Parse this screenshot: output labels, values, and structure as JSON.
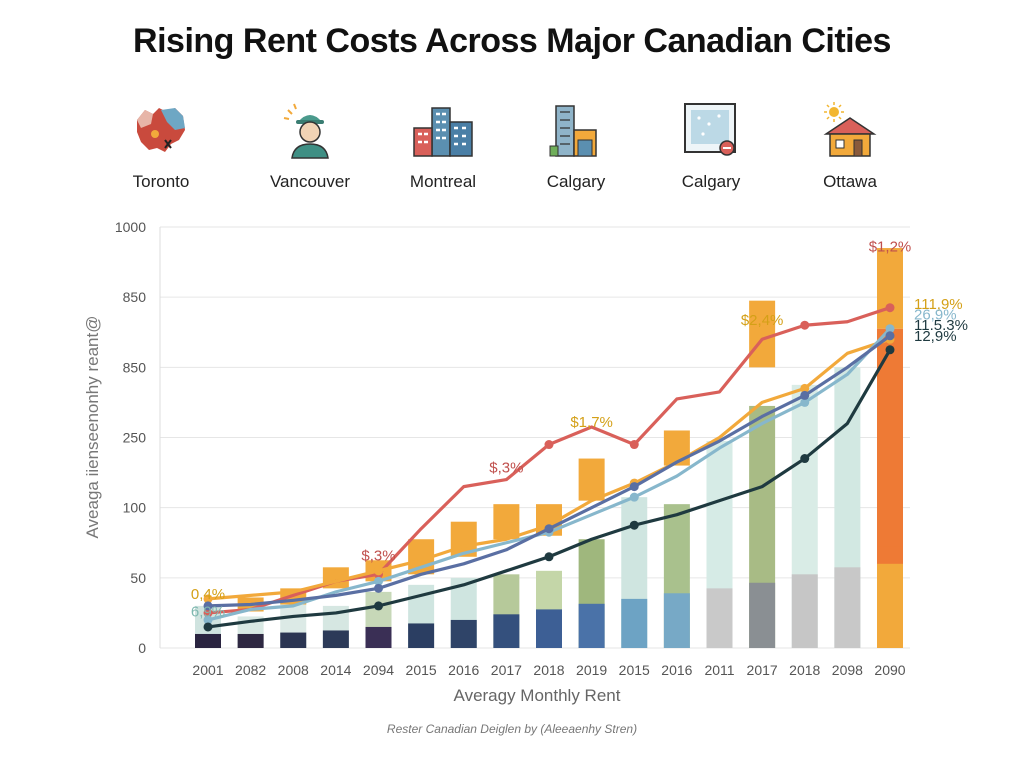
{
  "title": "Rising Rent Costs Across Major Canadian Cities",
  "cities": [
    {
      "label": "Toronto",
      "icon": "canada-map-icon"
    },
    {
      "label": "Vancouver",
      "icon": "worker-icon"
    },
    {
      "label": "Montreal",
      "icon": "city-buildings-icon"
    },
    {
      "label": "Calgary",
      "icon": "skyscraper-icon"
    },
    {
      "label": "Calgary",
      "icon": "window-icon"
    },
    {
      "label": "Ottawa",
      "icon": "house-sun-icon"
    }
  ],
  "footer": "Rester Canadian Deiglen by (Aleeaenhy Stren)",
  "chart_data": {
    "type": "bar",
    "title": "Rising Rent Costs Across Major Canadian Cities",
    "xlabel": "Averagy Monthly Rent",
    "ylabel": "Aveaga iienseenonhy reant@",
    "y_tick_labels": [
      "0",
      "50",
      "100",
      "250",
      "850",
      "850",
      "1000"
    ],
    "ylim": [
      0,
      6
    ],
    "grid": true,
    "categories": [
      "2001",
      "2082",
      "2008",
      "2014",
      "2094",
      "2015",
      "2016",
      "2017",
      "2018",
      "2019",
      "2015",
      "2016",
      "2011",
      "2017",
      "2018",
      "2098",
      "2090"
    ],
    "bars": [
      {
        "dark": 0.2,
        "light": 0.6
      },
      {
        "dark": 0.2,
        "light": 0.45
      },
      {
        "dark": 0.22,
        "light": 0.65
      },
      {
        "dark": 0.25,
        "light": 0.6
      },
      {
        "dark": 0.3,
        "light": 0.8
      },
      {
        "dark": 0.35,
        "light": 0.9
      },
      {
        "dark": 0.4,
        "light": 1.0
      },
      {
        "dark": 0.48,
        "light": 1.05
      },
      {
        "dark": 0.55,
        "light": 1.1
      },
      {
        "dark": 0.63,
        "light": 1.55
      },
      {
        "dark": 0.7,
        "light": 2.15
      },
      {
        "dark": 0.78,
        "light": 2.05
      },
      {
        "dark": 0.85,
        "light": 2.95
      },
      {
        "dark": 0.93,
        "light": 3.45
      },
      {
        "dark": 1.05,
        "light": 3.75
      },
      {
        "dark": 1.15,
        "light": 4.0
      },
      {
        "dark": 1.2,
        "light": 4.35
      }
    ],
    "series": [
      {
        "color": "#d9605a",
        "values": [
          0.5,
          0.55,
          0.75,
          0.95,
          1.05,
          1.7,
          2.3,
          2.4,
          2.9,
          3.15,
          2.9,
          3.55,
          3.65,
          4.4,
          4.6,
          4.65,
          4.85
        ]
      },
      {
        "color": "#f2a93b",
        "values": [
          0.7,
          0.75,
          0.8,
          0.95,
          1.1,
          1.25,
          1.45,
          1.55,
          1.75,
          2.1,
          2.35,
          2.65,
          3.0,
          3.5,
          3.7,
          4.2,
          4.4
        ]
      },
      {
        "color": "#87b7cc",
        "values": [
          0.4,
          0.55,
          0.6,
          0.8,
          0.95,
          1.15,
          1.35,
          1.5,
          1.65,
          1.9,
          2.15,
          2.45,
          2.85,
          3.2,
          3.5,
          3.9,
          4.55
        ]
      },
      {
        "color": "#5a6fa3",
        "values": [
          0.6,
          0.62,
          0.68,
          0.75,
          0.85,
          1.05,
          1.2,
          1.4,
          1.7,
          2.0,
          2.3,
          2.65,
          2.95,
          3.3,
          3.6,
          4.0,
          4.45
        ]
      },
      {
        "color": "#1f3a40",
        "values": [
          0.3,
          0.38,
          0.45,
          0.5,
          0.6,
          0.75,
          0.9,
          1.1,
          1.3,
          1.55,
          1.75,
          1.9,
          2.1,
          2.3,
          2.7,
          3.2,
          4.25
        ]
      }
    ],
    "annotations": [
      {
        "text": "0,4%",
        "x": 0,
        "y": 0.7,
        "color": "#d4a017"
      },
      {
        "text": "6,9%",
        "x": 0,
        "y": 0.45,
        "color": "#7fb8b0"
      },
      {
        "text": "$,3%",
        "x": 4,
        "y": 1.25,
        "color": "#c0504d"
      },
      {
        "text": "$,3%",
        "x": 7,
        "y": 2.5,
        "color": "#c0504d"
      },
      {
        "text": "$1,7%",
        "x": 9,
        "y": 3.15,
        "color": "#d4a017"
      },
      {
        "text": "$2,4%",
        "x": 13,
        "y": 4.6,
        "color": "#d4a017"
      },
      {
        "text": "$1,2%",
        "x": 16,
        "y": 5.65,
        "color": "#c0504d"
      }
    ],
    "end_labels": [
      {
        "text": "111,9%",
        "color": "#d4a017",
        "y": 4.9
      },
      {
        "text": "26,9%",
        "color": "#87b7cc",
        "y": 4.75
      },
      {
        "text": "11.5.3%",
        "color": "#1f3a40",
        "y": 4.6
      },
      {
        "text": "12,9%",
        "color": "#1f3a40",
        "y": 4.45
      }
    ]
  }
}
